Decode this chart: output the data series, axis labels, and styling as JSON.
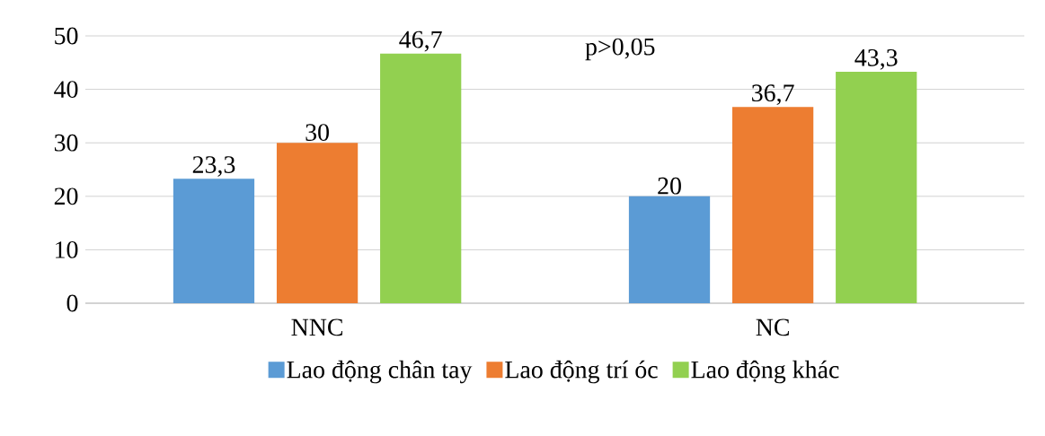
{
  "chart_data": {
    "type": "bar",
    "categories": [
      "NNC",
      "NC"
    ],
    "series": [
      {
        "name": "Lao động chân tay",
        "color": "#5b9bd5",
        "values": [
          23.3,
          20
        ],
        "value_labels": [
          "23,3",
          "20"
        ]
      },
      {
        "name": "Lao động trí óc",
        "color": "#ed7d31",
        "values": [
          30,
          36.7
        ],
        "value_labels": [
          "30",
          "36,7"
        ]
      },
      {
        "name": "Lao động khác",
        "color": "#92d050",
        "values": [
          46.7,
          43.3
        ],
        "value_labels": [
          "46,7",
          "43,3"
        ]
      }
    ],
    "ylim": [
      0,
      50
    ],
    "yticks": [
      0,
      10,
      20,
      30,
      40,
      50
    ],
    "grid": "y",
    "legend": "bottom",
    "annotations": [
      "p>0,05"
    ]
  }
}
